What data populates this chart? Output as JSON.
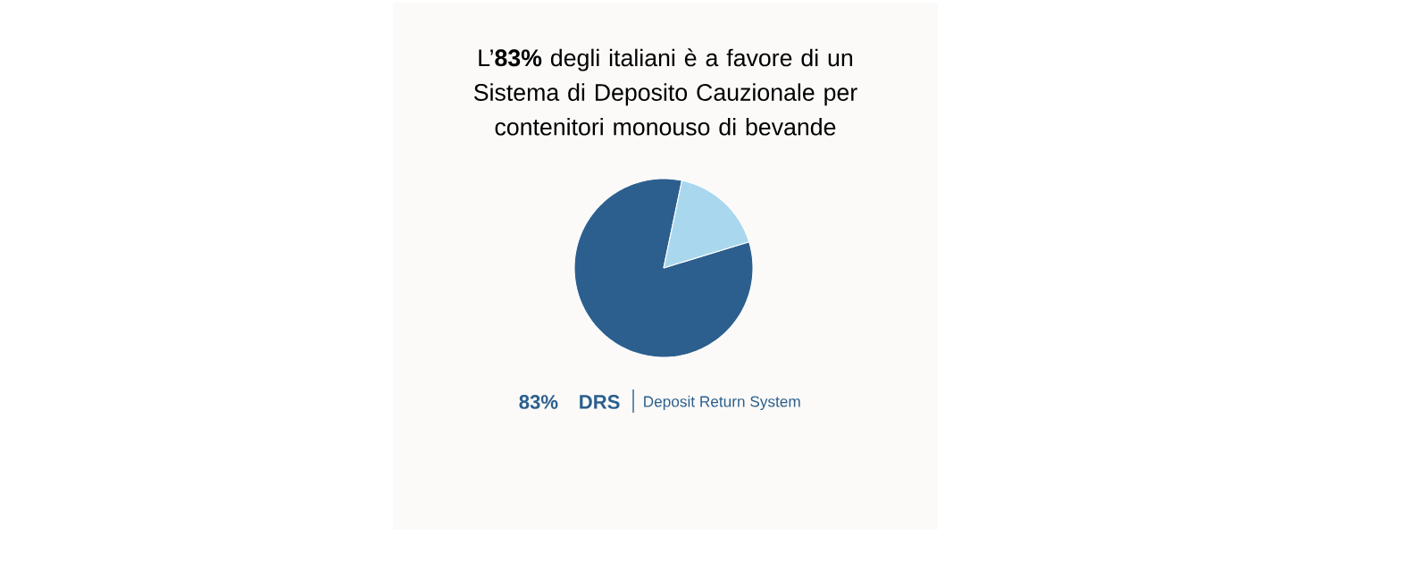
{
  "chart_data": {
    "type": "pie",
    "title": "L’**83%** degli italiani è a favore di un Sistema di Deposito Cauzionale per contenitori monouso di bevande",
    "categories": [
      "DRS",
      null
    ],
    "values": [
      83,
      17
    ],
    "colors": [
      "#2c5f8e",
      "#a9d8ee"
    ],
    "value_labels": [
      "83%",
      null
    ],
    "annotations": [
      "Deposit Return System"
    ]
  }
}
